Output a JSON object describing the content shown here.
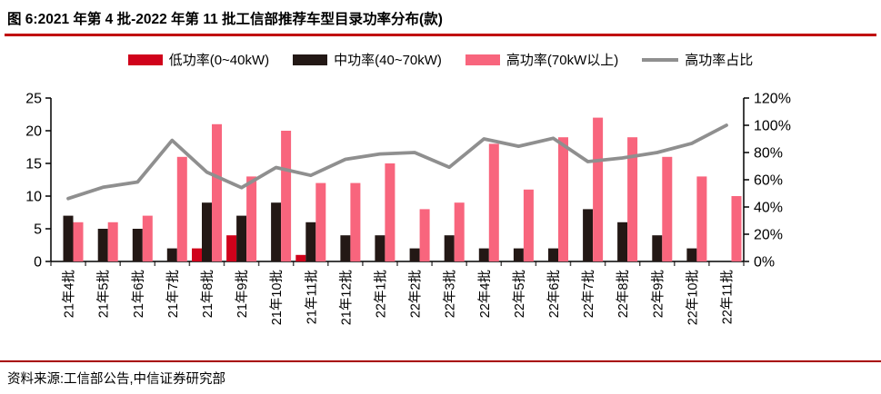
{
  "title": "图 6:2021 年第 4 批-2022 年第 11 批工信部推荐车型目录功率分布(款)",
  "source": "资料来源:工信部公告,中信证券研究部",
  "colors": {
    "title_rule": "#c00000",
    "source_rule": "#a80000",
    "axis": "#000000",
    "tick": "#4d4d4d"
  },
  "chart_data": {
    "type": "bar+line",
    "title": "2021年第4批-2022年第11批工信部推荐车型目录功率分布(款)",
    "categories": [
      "21年4批",
      "21年5批",
      "21年6批",
      "21年7批",
      "21年8批",
      "21年9批",
      "21年10批",
      "21年11批",
      "21年12批",
      "22年1批",
      "22年2批",
      "22年3批",
      "22年4批",
      "22年5批",
      "22年6批",
      "22年7批",
      "22年8批",
      "22年9批",
      "22年10批",
      "22年11批"
    ],
    "series": [
      {
        "key": "low-power",
        "name": "低功率(0~40kW)",
        "type": "bar",
        "color": "#d0021b",
        "axis": "left",
        "values": [
          0,
          0,
          0,
          0,
          2,
          4,
          0,
          1,
          0,
          0,
          0,
          0,
          0,
          0,
          0,
          0,
          0,
          0,
          0,
          0
        ]
      },
      {
        "key": "mid-power",
        "name": "中功率(40~70kW)",
        "type": "bar",
        "color": "#231815",
        "axis": "left",
        "values": [
          7,
          5,
          5,
          2,
          9,
          7,
          9,
          6,
          4,
          4,
          2,
          4,
          2,
          2,
          2,
          8,
          6,
          4,
          2,
          0
        ]
      },
      {
        "key": "high-power",
        "name": "高功率(70kW以上)",
        "type": "bar",
        "color": "#f8657d",
        "axis": "left",
        "values": [
          6,
          6,
          7,
          16,
          21,
          13,
          20,
          12,
          12,
          15,
          8,
          9,
          18,
          11,
          19,
          22,
          19,
          16,
          13,
          10
        ]
      },
      {
        "key": "high-power-ratio",
        "name": "高功率占比",
        "type": "line",
        "color": "#8f8f8f",
        "axis": "right",
        "values": [
          46.2,
          54.5,
          58.3,
          88.9,
          65.6,
          54.2,
          69.0,
          63.2,
          75.0,
          78.9,
          80.0,
          69.2,
          90.0,
          84.6,
          90.5,
          73.3,
          76.0,
          80.0,
          86.7,
          100.0
        ]
      }
    ],
    "left_axis": {
      "min": 0,
      "max": 25,
      "step": 5,
      "tick_labels": [
        "0",
        "5",
        "10",
        "15",
        "20",
        "25"
      ]
    },
    "right_axis": {
      "min": 0,
      "max": 120,
      "step": 20,
      "tick_labels": [
        "0%",
        "20%",
        "40%",
        "60%",
        "80%",
        "100%",
        "120%"
      ]
    },
    "grid": false,
    "legend_position": "top"
  }
}
